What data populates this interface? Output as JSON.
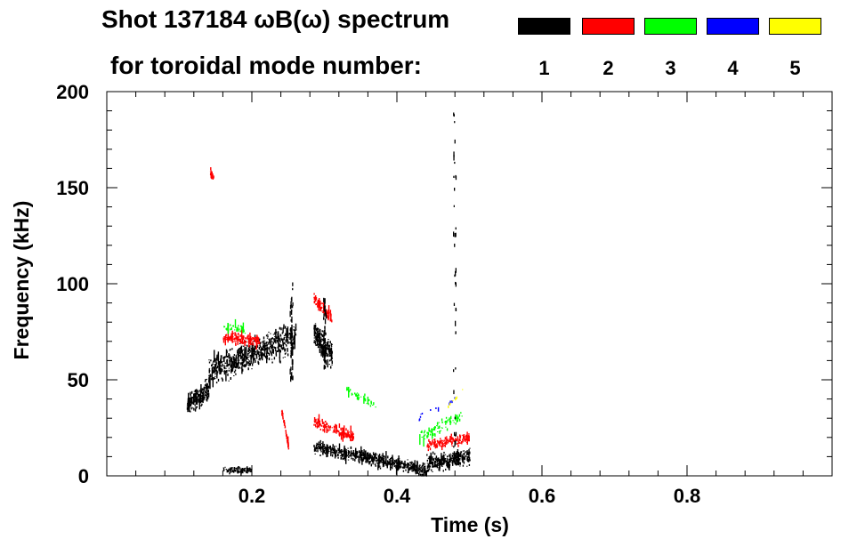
{
  "chart_data": {
    "type": "spectrogram",
    "title_line1": "Shot 137184 ωB(ω) spectrum",
    "title_line2": "for toroidal mode number:",
    "xlabel": "Time (s)",
    "ylabel": "Frequency (kHz)",
    "xlim": [
      0.0,
      1.0
    ],
    "ylim": [
      0,
      200
    ],
    "x_ticks": [
      0.2,
      0.4,
      0.6,
      0.8
    ],
    "x_tick_labels": [
      "0.2",
      "0.4",
      "0.6",
      "0.8"
    ],
    "y_ticks": [
      0,
      50,
      100,
      150,
      200
    ],
    "y_tick_labels": [
      "0",
      "50",
      "100",
      "150",
      "200"
    ],
    "legend": [
      {
        "mode": "1",
        "color": "#000000"
      },
      {
        "mode": "2",
        "color": "#ff0000"
      },
      {
        "mode": "3",
        "color": "#00ff00"
      },
      {
        "mode": "4",
        "color": "#0000ff"
      },
      {
        "mode": "5",
        "color": "#ffff00"
      }
    ],
    "features": [
      {
        "name": "n1-early-ramp",
        "mode": 1,
        "t_start": 0.11,
        "t_end": 0.14,
        "f_start": 37,
        "f_end": 45,
        "spread": 5,
        "density": 220
      },
      {
        "name": "n1-main-band",
        "mode": 1,
        "t_start": 0.14,
        "t_end": 0.26,
        "f_start": 55,
        "f_end": 72,
        "spread": 7,
        "density": 700
      },
      {
        "name": "n1-burst",
        "mode": 1,
        "t_start": 0.285,
        "t_end": 0.31,
        "f_start": 75,
        "f_end": 62,
        "spread": 6,
        "density": 220
      },
      {
        "name": "n1-decay",
        "mode": 1,
        "t_start": 0.285,
        "t_end": 0.44,
        "f_start": 15,
        "f_end": 3,
        "spread": 3,
        "density": 600
      },
      {
        "name": "n1-late",
        "mode": 1,
        "t_start": 0.44,
        "t_end": 0.5,
        "f_start": 6,
        "f_end": 10,
        "spread": 4,
        "density": 300
      },
      {
        "name": "n1-base-low",
        "mode": 1,
        "t_start": 0.16,
        "t_end": 0.2,
        "f_start": 3,
        "f_end": 3,
        "spread": 1.5,
        "density": 80
      },
      {
        "name": "n2-main",
        "mode": 2,
        "t_start": 0.16,
        "t_end": 0.21,
        "f_start": 72,
        "f_end": 70,
        "spread": 2.5,
        "density": 160
      },
      {
        "name": "n2-burst",
        "mode": 2,
        "t_start": 0.285,
        "t_end": 0.31,
        "f_start": 92,
        "f_end": 82,
        "spread": 2.5,
        "density": 90
      },
      {
        "name": "n2-decay",
        "mode": 2,
        "t_start": 0.285,
        "t_end": 0.34,
        "f_start": 28,
        "f_end": 20,
        "spread": 2.5,
        "density": 160
      },
      {
        "name": "n2-late",
        "mode": 2,
        "t_start": 0.44,
        "t_end": 0.5,
        "f_start": 16,
        "f_end": 20,
        "spread": 2.5,
        "density": 180
      },
      {
        "name": "n2-spot-150",
        "mode": 2,
        "t_start": 0.142,
        "t_end": 0.147,
        "f_start": 158,
        "f_end": 155,
        "spread": 2,
        "density": 25
      },
      {
        "name": "n2-drop",
        "mode": 2,
        "t_start": 0.24,
        "t_end": 0.25,
        "f_start": 35,
        "f_end": 15,
        "spread": 1.5,
        "density": 60
      },
      {
        "name": "n3-main",
        "mode": 3,
        "t_start": 0.16,
        "t_end": 0.19,
        "f_start": 78,
        "f_end": 76,
        "spread": 2,
        "density": 40
      },
      {
        "name": "n3-mid",
        "mode": 3,
        "t_start": 0.33,
        "t_end": 0.37,
        "f_start": 45,
        "f_end": 37,
        "spread": 2,
        "density": 40
      },
      {
        "name": "n3-late",
        "mode": 3,
        "t_start": 0.43,
        "t_end": 0.49,
        "f_start": 20,
        "f_end": 32,
        "spread": 3,
        "density": 90
      },
      {
        "name": "n4-late",
        "mode": 4,
        "t_start": 0.43,
        "t_end": 0.48,
        "f_start": 30,
        "f_end": 40,
        "spread": 2,
        "density": 14
      },
      {
        "name": "n5-late",
        "mode": 5,
        "t_start": 0.46,
        "t_end": 0.49,
        "f_start": 32,
        "f_end": 45,
        "spread": 1.5,
        "density": 8
      }
    ],
    "spikes": [
      {
        "mode": 1,
        "t": 0.479,
        "f_low": 10,
        "f_high": 190
      },
      {
        "mode": 1,
        "t": 0.254,
        "f_low": 50,
        "f_high": 100
      },
      {
        "mode": 1,
        "t": 0.3,
        "f_low": 55,
        "f_high": 92
      }
    ]
  }
}
